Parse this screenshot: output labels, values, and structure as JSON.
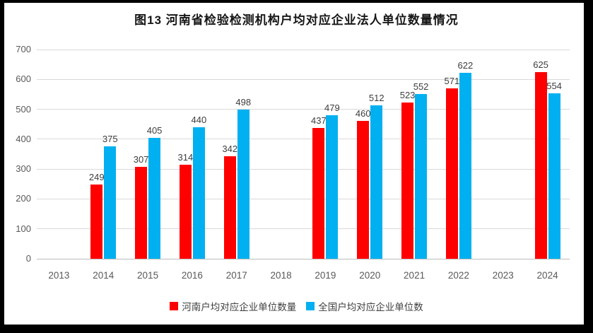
{
  "title": "图13 河南省检验检测机构户均对应企业法人单位数量情况",
  "chart_data": {
    "type": "bar",
    "title": "图13 河南省检验检测机构户均对应企业法人单位数量情况",
    "categories": [
      "2013",
      "2014",
      "2015",
      "2016",
      "2017",
      "2018",
      "2019",
      "2020",
      "2021",
      "2022",
      "2023",
      "2024"
    ],
    "series": [
      {
        "name": "河南户均对应企业单位数量",
        "color": "#ff0000",
        "values": [
          null,
          249,
          307,
          314,
          342,
          null,
          437,
          460,
          523,
          571,
          null,
          625
        ]
      },
      {
        "name": "全国户均对应企业单位数",
        "color": "#00b0f0",
        "values": [
          null,
          375,
          405,
          440,
          498,
          null,
          479,
          512,
          552,
          622,
          null,
          554
        ]
      }
    ],
    "xlabel": "",
    "ylabel": "",
    "ylim": [
      0,
      700
    ],
    "yticks": [
      0,
      100,
      200,
      300,
      400,
      500,
      600,
      700
    ],
    "grid": true,
    "legend_position": "bottom",
    "colors": {
      "grid": "#d9d9d9",
      "axis": "#bdbdbd",
      "tick_text": "#595959",
      "value_text": "#3d3d3d"
    }
  }
}
